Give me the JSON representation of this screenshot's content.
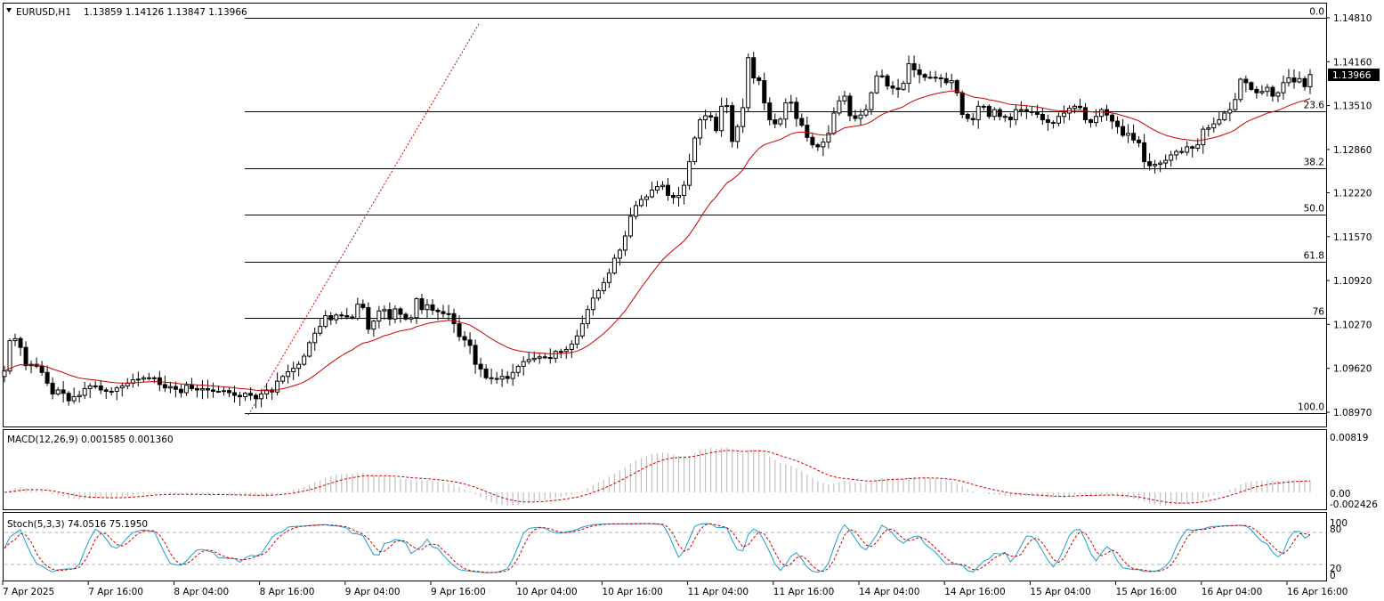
{
  "header": {
    "symbol": "EURUSD,H1",
    "ohlc": "1.13859 1.14126 1.13847 1.13966"
  },
  "price_axis": {
    "ticks": [
      "1.14810",
      "1.14160",
      "1.13510",
      "1.12860",
      "1.12220",
      "1.11570",
      "1.10920",
      "1.10270",
      "1.09620",
      "1.08970"
    ],
    "current_price": "1.13966"
  },
  "fib_levels": [
    {
      "label": "0.0",
      "price": 1.1481
    },
    {
      "label": "23.6",
      "price": 1.1343
    },
    {
      "label": "38.2",
      "price": 1.1258
    },
    {
      "label": "50.0",
      "price": 1.1189
    },
    {
      "label": "61.8",
      "price": 1.112
    },
    {
      "label": "76",
      "price": 1.10365
    },
    {
      "label": "100.0",
      "price": 1.08955
    }
  ],
  "macd": {
    "title": "MACD(12,26,9) 0.001585 0.001360",
    "ticks": [
      "0.00819",
      "0.00",
      "-0.002426"
    ]
  },
  "stoch": {
    "title": "Stoch(5,3,3) 74.0516 75.1950",
    "ticks": [
      "100",
      "80",
      "20",
      "0"
    ]
  },
  "time_axis": {
    "labels": [
      "7 Apr 2025",
      "7 Apr 16:00",
      "8 Apr 04:00",
      "8 Apr 16:00",
      "9 Apr 04:00",
      "9 Apr 16:00",
      "10 Apr 04:00",
      "10 Apr 16:00",
      "11 Apr 04:00",
      "11 Apr 16:00",
      "14 Apr 04:00",
      "14 Apr 16:00",
      "15 Apr 04:00",
      "15 Apr 16:00",
      "16 Apr 04:00",
      "16 Apr 16:00"
    ]
  },
  "colors": {
    "candle": "#000000",
    "ma_line": "#cc0000",
    "signal_line": "#cc0000",
    "histogram": "#c0c0c0",
    "stoch_main": "#1a9fcf",
    "stoch_signal": "#cc0000",
    "grid_dash": "#b0b0b0"
  },
  "chart_data": {
    "type": "candlestick",
    "series": [
      {
        "name": "EURUSD,H1",
        "close": [
          1.0958,
          1.1003,
          1.1006,
          1.0993,
          1.0966,
          1.0968,
          1.0965,
          1.0956,
          1.094,
          1.0924,
          1.093,
          1.0925,
          1.0914,
          1.092,
          1.0922,
          1.0932,
          1.0936,
          1.0936,
          1.093,
          1.0928,
          1.0928,
          1.0933,
          1.0936,
          1.094,
          1.0945,
          1.0946,
          1.0948,
          1.0947,
          1.0948,
          1.0938,
          1.0933,
          1.0935,
          1.0931,
          1.0926,
          1.0937,
          1.0932,
          1.093,
          1.0932,
          1.093,
          1.0928,
          1.0928,
          1.0929,
          1.0926,
          1.0922,
          1.092,
          1.0925,
          1.0922,
          1.0917,
          1.0924,
          1.093,
          1.0927,
          1.0943,
          1.095,
          1.0957,
          1.0962,
          1.0968,
          1.098,
          1.1,
          1.1014,
          1.1024,
          1.104,
          1.1034,
          1.1041,
          1.104,
          1.1038,
          1.1036,
          1.1057,
          1.1052,
          1.102,
          1.1032,
          1.1047,
          1.1049,
          1.1035,
          1.105,
          1.1042,
          1.1035,
          1.1037,
          1.1065,
          1.1049,
          1.1056,
          1.1048,
          1.1046,
          1.1043,
          1.1043,
          1.1028,
          1.1009,
          1.1004,
          1.0996,
          1.0968,
          1.0961,
          1.0948,
          1.0947,
          1.0946,
          1.095,
          1.0947,
          1.0956,
          1.0965,
          1.0972,
          1.0975,
          1.0977,
          1.0979,
          1.0978,
          1.0977,
          1.0987,
          1.0987,
          1.099,
          1.0998,
          1.101,
          1.1028,
          1.1049,
          1.1066,
          1.1077,
          1.1089,
          1.1103,
          1.1125,
          1.1137,
          1.1158,
          1.1187,
          1.1203,
          1.1212,
          1.1216,
          1.1226,
          1.1231,
          1.1233,
          1.1218,
          1.1215,
          1.1218,
          1.1233,
          1.1268,
          1.1303,
          1.133,
          1.1336,
          1.1334,
          1.1314,
          1.135,
          1.1351,
          1.1298,
          1.132,
          1.1348,
          1.1422,
          1.1392,
          1.1388,
          1.1355,
          1.133,
          1.1324,
          1.1331,
          1.1355,
          1.1356,
          1.1332,
          1.1322,
          1.1304,
          1.1293,
          1.129,
          1.1297,
          1.131,
          1.134,
          1.1358,
          1.1365,
          1.1336,
          1.1332,
          1.1337,
          1.1345,
          1.137,
          1.1395,
          1.1395,
          1.138,
          1.1377,
          1.1375,
          1.1384,
          1.1413,
          1.1404,
          1.1397,
          1.1393,
          1.1393,
          1.1392,
          1.1391,
          1.1385,
          1.1388,
          1.137,
          1.1338,
          1.1332,
          1.133,
          1.135,
          1.135,
          1.1335,
          1.1345,
          1.1335,
          1.1334,
          1.133,
          1.1345,
          1.1345,
          1.1342,
          1.1341,
          1.1338,
          1.133,
          1.1326,
          1.1325,
          1.1335,
          1.134,
          1.1347,
          1.135,
          1.1348,
          1.133,
          1.1326,
          1.1335,
          1.1345,
          1.1337,
          1.1328,
          1.132,
          1.1307,
          1.131,
          1.13,
          1.1296,
          1.1268,
          1.1262,
          1.1264,
          1.1266,
          1.127,
          1.1278,
          1.1283,
          1.1282,
          1.129,
          1.1288,
          1.1293,
          1.1316,
          1.1318,
          1.1324,
          1.133,
          1.134,
          1.1345,
          1.136,
          1.139,
          1.1385,
          1.1375,
          1.137,
          1.1372,
          1.1378,
          1.1365,
          1.137,
          1.1385,
          1.1392,
          1.1386,
          1.1391,
          1.1379,
          1.1397
        ]
      }
    ],
    "ma_line": "period not printed",
    "ylim": [
      1.0895,
      1.1485
    ],
    "yticks": [
      1.1481,
      1.1416,
      1.1351,
      1.1286,
      1.1222,
      1.1157,
      1.1092,
      1.1027,
      1.0962,
      1.0897
    ],
    "xlabels": [
      "7 Apr 2025",
      "7 Apr 16:00",
      "8 Apr 04:00",
      "8 Apr 16:00",
      "9 Apr 04:00",
      "9 Apr 16:00",
      "10 Apr 04:00",
      "10 Apr 16:00",
      "11 Apr 04:00",
      "11 Apr 16:00",
      "14 Apr 04:00",
      "14 Apr 16:00",
      "15 Apr 04:00",
      "15 Apr 16:00",
      "16 Apr 04:00",
      "16 Apr 16:00"
    ],
    "grid": false
  }
}
